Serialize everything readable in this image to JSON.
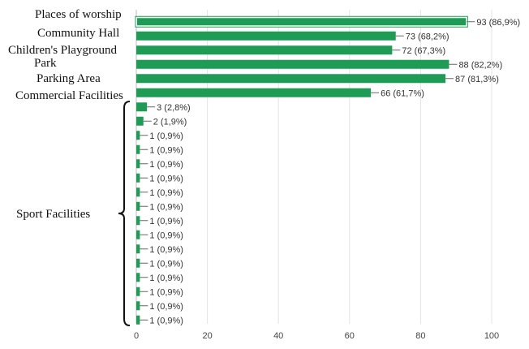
{
  "chart_data": {
    "type": "bar",
    "orientation": "horizontal",
    "categories": [
      "Places of worship",
      "Community Hall",
      "Children's Playground Park",
      "",
      "Parking Area",
      "Commercial Facilities",
      "",
      "",
      "",
      "",
      "",
      "",
      "",
      "",
      "",
      "",
      "",
      "",
      "",
      "",
      "",
      ""
    ],
    "values": [
      93,
      73,
      72,
      88,
      87,
      66,
      3,
      2,
      1,
      1,
      1,
      1,
      1,
      1,
      1,
      1,
      1,
      1,
      1,
      1,
      1,
      1
    ],
    "data_labels": [
      "93 (86,9%)",
      "73 (68,2%)",
      "72 (67,3%)",
      "88 (82,2%)",
      "87 (81,3%)",
      "66 (61,7%)",
      "3 (2,8%)",
      "2 (1,9%)",
      "1 (0,9%)",
      "1 (0,9%)",
      "1 (0,9%)",
      "1 (0,9%)",
      "1 (0,9%)",
      "1 (0,9%)",
      "1 (0,9%)",
      "1 (0,9%)",
      "1 (0,9%)",
      "1 (0,9%)",
      "1 (0,9%)",
      "1 (0,9%)",
      "1 (0,9%)",
      "1 (0,9%)"
    ],
    "group_label": "Sport Facilities",
    "group_bracket_rows": [
      6,
      21
    ],
    "xlim": [
      0,
      100
    ],
    "xticks": [
      "0",
      "20",
      "40",
      "60",
      "80",
      "100"
    ],
    "grid": "vertical",
    "bar_color": "#1e9c55",
    "highlight_first_bar": true
  }
}
